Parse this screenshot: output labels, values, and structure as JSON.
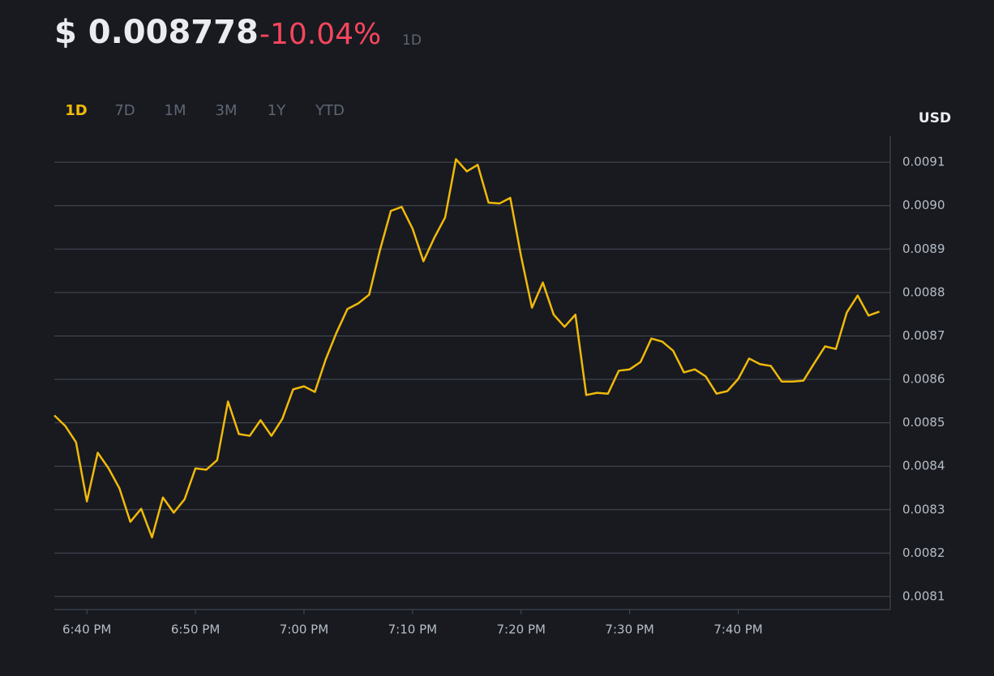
{
  "chart_data": {
    "type": "line",
    "price": "$ 0.008778",
    "change": "-10.04%",
    "period": "1D",
    "ranges": [
      "1D",
      "7D",
      "1M",
      "3M",
      "1Y",
      "YTD"
    ],
    "active_range": 0,
    "y_axis_label": "USD",
    "x": [
      "6:37 PM",
      "6:38 PM",
      "6:39 PM",
      "6:40 PM",
      "6:41 PM",
      "6:42 PM",
      "6:43 PM",
      "6:44 PM",
      "6:45 PM",
      "6:46 PM",
      "6:47 PM",
      "6:48 PM",
      "6:49 PM",
      "6:50 PM",
      "6:51 PM",
      "6:52 PM",
      "6:53 PM",
      "6:54 PM",
      "6:55 PM",
      "6:56 PM",
      "6:57 PM",
      "6:58 PM",
      "6:59 PM",
      "7:00 PM",
      "7:01 PM",
      "7:02 PM",
      "7:03 PM",
      "7:04 PM",
      "7:05 PM",
      "7:06 PM",
      "7:07 PM",
      "7:08 PM",
      "7:09 PM",
      "7:10 PM",
      "7:11 PM",
      "7:12 PM",
      "7:13 PM",
      "7:14 PM",
      "7:15 PM",
      "7:16 PM",
      "7:17 PM",
      "7:18 PM",
      "7:19 PM",
      "7:20 PM",
      "7:21 PM",
      "7:22 PM",
      "7:23 PM",
      "7:24 PM",
      "7:25 PM",
      "7:26 PM",
      "7:27 PM",
      "7:28 PM",
      "7:29 PM",
      "7:30 PM",
      "7:31 PM",
      "7:32 PM",
      "7:33 PM",
      "7:34 PM",
      "7:35 PM",
      "7:36 PM",
      "7:37 PM",
      "7:38 PM",
      "7:39 PM",
      "7:40 PM",
      "7:41 PM",
      "7:42 PM",
      "7:43 PM",
      "7:44 PM",
      "7:45 PM",
      "7:46 PM",
      "7:47 PM",
      "7:48 PM",
      "7:49 PM",
      "7:50 PM",
      "7:51 PM",
      "7:52 PM",
      "7:53 PM"
    ],
    "series": [
      {
        "color": "#f0b90b",
        "values": [
          0.008517,
          0.008493,
          0.008455,
          0.008319,
          0.008431,
          0.008395,
          0.008349,
          0.008272,
          0.008302,
          0.008236,
          0.008328,
          0.008293,
          0.008324,
          0.008395,
          0.008392,
          0.008414,
          0.008549,
          0.008474,
          0.00847,
          0.008506,
          0.00847,
          0.008509,
          0.008577,
          0.008584,
          0.008571,
          0.008646,
          0.008708,
          0.008762,
          0.008775,
          0.008795,
          0.008898,
          0.008988,
          0.008997,
          0.008947,
          0.008872,
          0.008926,
          0.008973,
          0.009107,
          0.009079,
          0.009094,
          0.009007,
          0.009005,
          0.009018,
          0.008883,
          0.008765,
          0.008823,
          0.008749,
          0.008721,
          0.008749,
          0.008564,
          0.008569,
          0.008567,
          0.00862,
          0.008623,
          0.00864,
          0.008694,
          0.008687,
          0.008666,
          0.008616,
          0.008623,
          0.008607,
          0.008567,
          0.008573,
          0.008601,
          0.008648,
          0.008635,
          0.008631,
          0.008595,
          0.008595,
          0.008597,
          0.008637,
          0.008676,
          0.00867,
          0.008754,
          0.008793,
          0.008747,
          0.008756
        ]
      }
    ],
    "xlim": [
      "6:37 PM",
      "7:54 PM"
    ],
    "xticks": [
      "6:40 PM",
      "6:50 PM",
      "7:00 PM",
      "7:10 PM",
      "7:20 PM",
      "7:30 PM",
      "7:40 PM"
    ],
    "ylim": [
      0.00807,
      0.00916
    ],
    "yticks": [
      0.0081,
      0.0082,
      0.0083,
      0.0084,
      0.0085,
      0.0086,
      0.0087,
      0.0088,
      0.0089,
      {
        "value": 0.009,
        "label": "0.0090"
      },
      0.0091
    ],
    "grid": true
  }
}
